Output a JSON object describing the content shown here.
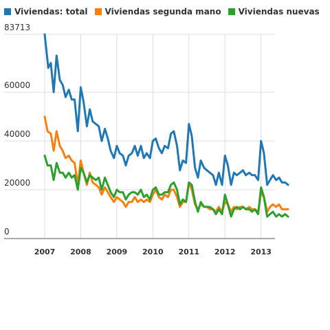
{
  "chart_data": {
    "type": "line",
    "title": "",
    "xlabel": "",
    "ylabel": "",
    "legend_position": "top-left",
    "grid": true,
    "ylim": [
      0,
      83713
    ],
    "xlim": [
      2007.0,
      2013.75
    ],
    "y_ticks": [
      "0",
      "20000",
      "40000",
      "60000",
      "83713"
    ],
    "y_tick_values": [
      0,
      20000,
      40000,
      60000,
      83713
    ],
    "x_ticks": [
      "2007",
      "2008",
      "2009",
      "2010",
      "2011",
      "2012",
      "2013"
    ],
    "x_tick_values": [
      2007,
      2008,
      2009,
      2010,
      2011,
      2012,
      2013
    ],
    "series": [
      {
        "name": "Viviendas: total",
        "color": "#1f77b4",
        "points": [
          [
            2007.0,
            83713
          ],
          [
            2007.1,
            70000
          ],
          [
            2007.17,
            72000
          ],
          [
            2007.25,
            60000
          ],
          [
            2007.33,
            75000
          ],
          [
            2007.42,
            65000
          ],
          [
            2007.5,
            63000
          ],
          [
            2007.58,
            58000
          ],
          [
            2007.67,
            61000
          ],
          [
            2007.75,
            57000
          ],
          [
            2007.83,
            57000
          ],
          [
            2007.92,
            44000
          ],
          [
            2008.0,
            62000
          ],
          [
            2008.08,
            56000
          ],
          [
            2008.17,
            46000
          ],
          [
            2008.25,
            53000
          ],
          [
            2008.33,
            48000
          ],
          [
            2008.42,
            47000
          ],
          [
            2008.5,
            46000
          ],
          [
            2008.58,
            40000
          ],
          [
            2008.67,
            45000
          ],
          [
            2008.75,
            41000
          ],
          [
            2008.83,
            36000
          ],
          [
            2008.92,
            33000
          ],
          [
            2009.0,
            38000
          ],
          [
            2009.08,
            35000
          ],
          [
            2009.17,
            34000
          ],
          [
            2009.25,
            30000
          ],
          [
            2009.33,
            34000
          ],
          [
            2009.42,
            35000
          ],
          [
            2009.5,
            38000
          ],
          [
            2009.58,
            34000
          ],
          [
            2009.67,
            38000
          ],
          [
            2009.75,
            33000
          ],
          [
            2009.83,
            35000
          ],
          [
            2009.92,
            33000
          ],
          [
            2010.0,
            40000
          ],
          [
            2010.08,
            41000
          ],
          [
            2010.17,
            37000
          ],
          [
            2010.25,
            35000
          ],
          [
            2010.33,
            38000
          ],
          [
            2010.42,
            37000
          ],
          [
            2010.5,
            43000
          ],
          [
            2010.58,
            44000
          ],
          [
            2010.67,
            38000
          ],
          [
            2010.75,
            28000
          ],
          [
            2010.83,
            32000
          ],
          [
            2010.92,
            31000
          ],
          [
            2011.0,
            47000
          ],
          [
            2011.08,
            42000
          ],
          [
            2011.17,
            29000
          ],
          [
            2011.25,
            25000
          ],
          [
            2011.33,
            32000
          ],
          [
            2011.42,
            29000
          ],
          [
            2011.5,
            28000
          ],
          [
            2011.58,
            27000
          ],
          [
            2011.67,
            26000
          ],
          [
            2011.75,
            22000
          ],
          [
            2011.83,
            27000
          ],
          [
            2011.92,
            22000
          ],
          [
            2012.0,
            34000
          ],
          [
            2012.08,
            30000
          ],
          [
            2012.17,
            22000
          ],
          [
            2012.25,
            27000
          ],
          [
            2012.33,
            26000
          ],
          [
            2012.42,
            27000
          ],
          [
            2012.5,
            28000
          ],
          [
            2012.58,
            26000
          ],
          [
            2012.67,
            27000
          ],
          [
            2012.75,
            26000
          ],
          [
            2012.83,
            26000
          ],
          [
            2012.92,
            24000
          ],
          [
            2013.0,
            40000
          ],
          [
            2013.08,
            35000
          ],
          [
            2013.17,
            22000
          ],
          [
            2013.25,
            24000
          ],
          [
            2013.33,
            26000
          ],
          [
            2013.42,
            24000
          ],
          [
            2013.5,
            25000
          ],
          [
            2013.58,
            23000
          ],
          [
            2013.67,
            23000
          ],
          [
            2013.75,
            22000
          ]
        ]
      },
      {
        "name": "Viviendas segunda mano",
        "color": "#ff7f0e",
        "points": [
          [
            2007.0,
            50000
          ],
          [
            2007.08,
            44000
          ],
          [
            2007.17,
            43000
          ],
          [
            2007.25,
            36000
          ],
          [
            2007.33,
            44000
          ],
          [
            2007.42,
            38000
          ],
          [
            2007.5,
            36000
          ],
          [
            2007.58,
            33000
          ],
          [
            2007.67,
            34000
          ],
          [
            2007.75,
            32000
          ],
          [
            2007.83,
            31000
          ],
          [
            2007.92,
            22000
          ],
          [
            2008.0,
            32000
          ],
          [
            2008.08,
            27000
          ],
          [
            2008.17,
            22000
          ],
          [
            2008.25,
            27000
          ],
          [
            2008.33,
            23000
          ],
          [
            2008.42,
            22000
          ],
          [
            2008.5,
            21000
          ],
          [
            2008.58,
            18000
          ],
          [
            2008.67,
            21000
          ],
          [
            2008.75,
            19000
          ],
          [
            2008.83,
            17000
          ],
          [
            2008.92,
            15000
          ],
          [
            2009.0,
            17000
          ],
          [
            2009.08,
            16000
          ],
          [
            2009.17,
            15000
          ],
          [
            2009.25,
            13000
          ],
          [
            2009.33,
            15000
          ],
          [
            2009.42,
            15000
          ],
          [
            2009.5,
            17000
          ],
          [
            2009.58,
            15000
          ],
          [
            2009.67,
            16000
          ],
          [
            2009.75,
            15000
          ],
          [
            2009.83,
            16000
          ],
          [
            2009.92,
            15000
          ],
          [
            2010.0,
            18000
          ],
          [
            2010.08,
            20000
          ],
          [
            2010.17,
            17000
          ],
          [
            2010.25,
            16000
          ],
          [
            2010.33,
            18000
          ],
          [
            2010.42,
            17000
          ],
          [
            2010.5,
            20000
          ],
          [
            2010.58,
            20000
          ],
          [
            2010.67,
            17000
          ],
          [
            2010.75,
            13000
          ],
          [
            2010.83,
            15000
          ],
          [
            2010.92,
            15000
          ],
          [
            2011.0,
            23000
          ],
          [
            2011.08,
            20000
          ],
          [
            2011.17,
            14000
          ],
          [
            2011.25,
            12000
          ],
          [
            2011.33,
            14000
          ],
          [
            2011.42,
            13000
          ],
          [
            2011.5,
            13000
          ],
          [
            2011.58,
            12000
          ],
          [
            2011.67,
            12000
          ],
          [
            2011.75,
            11000
          ],
          [
            2011.83,
            13000
          ],
          [
            2011.92,
            11000
          ],
          [
            2012.0,
            15000
          ],
          [
            2012.08,
            14000
          ],
          [
            2012.17,
            11000
          ],
          [
            2012.25,
            13000
          ],
          [
            2012.33,
            12000
          ],
          [
            2012.42,
            13000
          ],
          [
            2012.5,
            13000
          ],
          [
            2012.58,
            12000
          ],
          [
            2012.67,
            13000
          ],
          [
            2012.75,
            12000
          ],
          [
            2012.83,
            12000
          ],
          [
            2012.92,
            11000
          ],
          [
            2013.0,
            19000
          ],
          [
            2013.08,
            17000
          ],
          [
            2013.17,
            11000
          ],
          [
            2013.25,
            13000
          ],
          [
            2013.33,
            14000
          ],
          [
            2013.42,
            13000
          ],
          [
            2013.5,
            14000
          ],
          [
            2013.58,
            12000
          ],
          [
            2013.67,
            12000
          ],
          [
            2013.75,
            12000
          ]
        ]
      },
      {
        "name": "Viviendas nuevas",
        "color": "#2ca02c",
        "points": [
          [
            2007.0,
            34000
          ],
          [
            2007.08,
            30000
          ],
          [
            2007.17,
            30000
          ],
          [
            2007.25,
            24000
          ],
          [
            2007.33,
            31000
          ],
          [
            2007.42,
            27000
          ],
          [
            2007.5,
            27000
          ],
          [
            2007.58,
            25000
          ],
          [
            2007.67,
            27000
          ],
          [
            2007.75,
            25000
          ],
          [
            2007.83,
            26000
          ],
          [
            2007.92,
            20000
          ],
          [
            2008.0,
            29000
          ],
          [
            2008.08,
            27000
          ],
          [
            2008.17,
            23000
          ],
          [
            2008.25,
            26000
          ],
          [
            2008.33,
            25000
          ],
          [
            2008.42,
            24000
          ],
          [
            2008.5,
            25000
          ],
          [
            2008.58,
            20000
          ],
          [
            2008.67,
            25000
          ],
          [
            2008.75,
            22000
          ],
          [
            2008.83,
            19000
          ],
          [
            2008.92,
            17000
          ],
          [
            2009.0,
            20000
          ],
          [
            2009.08,
            19000
          ],
          [
            2009.17,
            19000
          ],
          [
            2009.25,
            16000
          ],
          [
            2009.33,
            18000
          ],
          [
            2009.42,
            19000
          ],
          [
            2009.5,
            19000
          ],
          [
            2009.58,
            18000
          ],
          [
            2009.67,
            20000
          ],
          [
            2009.75,
            17000
          ],
          [
            2009.83,
            18000
          ],
          [
            2009.92,
            16000
          ],
          [
            2010.0,
            20000
          ],
          [
            2010.08,
            21000
          ],
          [
            2010.17,
            18000
          ],
          [
            2010.25,
            18000
          ],
          [
            2010.33,
            19000
          ],
          [
            2010.42,
            19000
          ],
          [
            2010.5,
            22000
          ],
          [
            2010.58,
            23000
          ],
          [
            2010.67,
            20000
          ],
          [
            2010.75,
            14000
          ],
          [
            2010.83,
            16000
          ],
          [
            2010.92,
            15000
          ],
          [
            2011.0,
            23000
          ],
          [
            2011.08,
            22000
          ],
          [
            2011.17,
            15000
          ],
          [
            2011.25,
            11000
          ],
          [
            2011.33,
            15000
          ],
          [
            2011.42,
            13000
          ],
          [
            2011.5,
            13000
          ],
          [
            2011.58,
            13000
          ],
          [
            2011.67,
            12000
          ],
          [
            2011.75,
            10000
          ],
          [
            2011.83,
            12000
          ],
          [
            2011.92,
            10000
          ],
          [
            2012.0,
            18000
          ],
          [
            2012.08,
            14000
          ],
          [
            2012.17,
            9000
          ],
          [
            2012.25,
            12000
          ],
          [
            2012.33,
            13000
          ],
          [
            2012.42,
            12000
          ],
          [
            2012.5,
            13000
          ],
          [
            2012.58,
            12000
          ],
          [
            2012.67,
            12000
          ],
          [
            2012.75,
            11000
          ],
          [
            2012.83,
            12000
          ],
          [
            2012.92,
            10000
          ],
          [
            2013.0,
            21000
          ],
          [
            2013.08,
            17000
          ],
          [
            2013.17,
            9000
          ],
          [
            2013.25,
            10000
          ],
          [
            2013.33,
            11000
          ],
          [
            2013.42,
            9000
          ],
          [
            2013.5,
            10000
          ],
          [
            2013.58,
            9000
          ],
          [
            2013.67,
            10000
          ],
          [
            2013.75,
            9000
          ]
        ]
      }
    ]
  }
}
